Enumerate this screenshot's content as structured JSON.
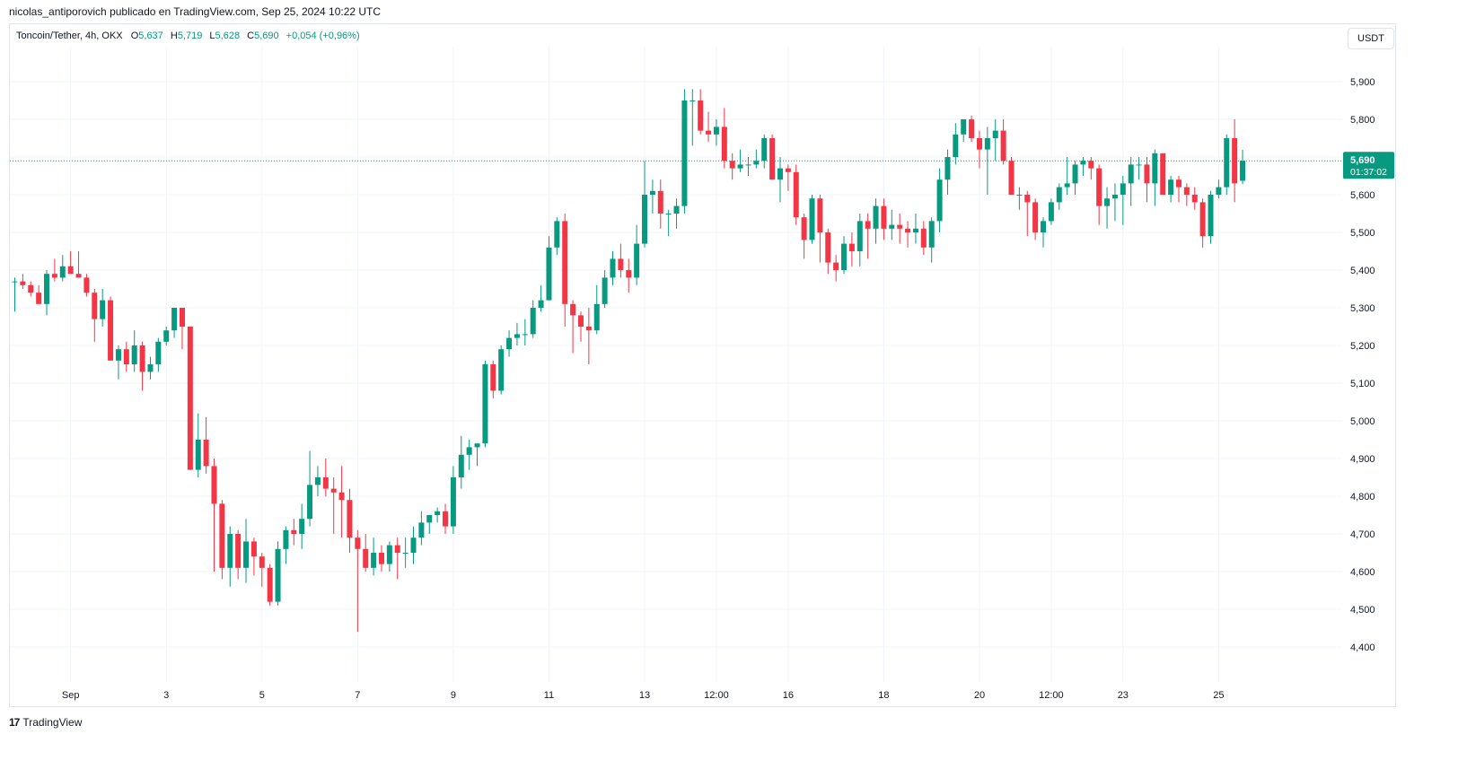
{
  "header": {
    "publisher_text": "nicolas_antiporovich publicado en TradingView.com, Sep 25, 2024 10:22 UTC"
  },
  "legend": {
    "symbol": "Toncoin/Tether, 4h, OKX",
    "open_label": "O",
    "open": "5,637",
    "high_label": "H",
    "high": "5,719",
    "low_label": "L",
    "low": "5,628",
    "close_label": "C",
    "close": "5,690",
    "change": "+0,054 (+0,96%)"
  },
  "currency_button": "USDT",
  "price_badge": {
    "price": "5,690",
    "countdown": "01:37:02"
  },
  "footer": {
    "logo": "17",
    "brand": "TradingView"
  },
  "colors": {
    "up": "#089981",
    "down": "#f23645",
    "grid": "#f0f3fa",
    "text": "#131722"
  },
  "chart_data": {
    "type": "candlestick",
    "title": "Toncoin/Tether, 4h, OKX",
    "ylim": [
      4.35,
      5.97
    ],
    "y_ticks": [
      "5,900",
      "5,800",
      "5,700",
      "5,600",
      "5,500",
      "5,400",
      "5,300",
      "5,200",
      "5,100",
      "5,000",
      "4,900",
      "4,800",
      "4,700",
      "4,600",
      "4,500",
      "4,400"
    ],
    "x_ticks": [
      {
        "label": "Sep",
        "i": 7
      },
      {
        "label": "3",
        "i": 19
      },
      {
        "label": "5",
        "i": 31
      },
      {
        "label": "7",
        "i": 43
      },
      {
        "label": "9",
        "i": 55
      },
      {
        "label": "11",
        "i": 67
      },
      {
        "label": "13",
        "i": 79
      },
      {
        "label": "12:00",
        "i": 88
      },
      {
        "label": "16",
        "i": 97
      },
      {
        "label": "18",
        "i": 109
      },
      {
        "label": "20",
        "i": 121
      },
      {
        "label": "12:00",
        "i": 130
      },
      {
        "label": "23",
        "i": 139
      },
      {
        "label": "25",
        "i": 151
      }
    ],
    "last_price": 5.69,
    "candles": [
      [
        5.37,
        5.38,
        5.29,
        5.37
      ],
      [
        5.37,
        5.39,
        5.35,
        5.36
      ],
      [
        5.36,
        5.37,
        5.33,
        5.34
      ],
      [
        5.34,
        5.36,
        5.31,
        5.31
      ],
      [
        5.31,
        5.4,
        5.28,
        5.39
      ],
      [
        5.39,
        5.43,
        5.37,
        5.38
      ],
      [
        5.38,
        5.44,
        5.37,
        5.41
      ],
      [
        5.41,
        5.45,
        5.39,
        5.39
      ],
      [
        5.39,
        5.45,
        5.38,
        5.38
      ],
      [
        5.38,
        5.39,
        5.33,
        5.34
      ],
      [
        5.34,
        5.35,
        5.21,
        5.27
      ],
      [
        5.27,
        5.35,
        5.25,
        5.32
      ],
      [
        5.32,
        5.33,
        5.16,
        5.16
      ],
      [
        5.16,
        5.2,
        5.11,
        5.19
      ],
      [
        5.19,
        5.21,
        5.13,
        5.15
      ],
      [
        5.15,
        5.24,
        5.13,
        5.2
      ],
      [
        5.2,
        5.21,
        5.08,
        5.13
      ],
      [
        5.13,
        5.17,
        5.11,
        5.15
      ],
      [
        5.15,
        5.22,
        5.13,
        5.21
      ],
      [
        5.21,
        5.25,
        5.2,
        5.24
      ],
      [
        5.24,
        5.3,
        5.22,
        5.3
      ],
      [
        5.3,
        5.3,
        5.19,
        5.25
      ],
      [
        5.25,
        5.25,
        4.87,
        4.87
      ],
      [
        4.87,
        5.02,
        4.85,
        4.95
      ],
      [
        4.95,
        5.01,
        4.86,
        4.88
      ],
      [
        4.88,
        4.9,
        4.6,
        4.78
      ],
      [
        4.78,
        4.79,
        4.58,
        4.61
      ],
      [
        4.61,
        4.72,
        4.56,
        4.7
      ],
      [
        4.7,
        4.71,
        4.58,
        4.61
      ],
      [
        4.61,
        4.74,
        4.57,
        4.68
      ],
      [
        4.68,
        4.69,
        4.59,
        4.64
      ],
      [
        4.64,
        4.65,
        4.56,
        4.61
      ],
      [
        4.61,
        4.62,
        4.51,
        4.52
      ],
      [
        4.52,
        4.68,
        4.51,
        4.66
      ],
      [
        4.66,
        4.72,
        4.62,
        4.71
      ],
      [
        4.71,
        4.74,
        4.67,
        4.7
      ],
      [
        4.7,
        4.78,
        4.66,
        4.74
      ],
      [
        4.74,
        4.92,
        4.72,
        4.83
      ],
      [
        4.83,
        4.88,
        4.8,
        4.85
      ],
      [
        4.85,
        4.9,
        4.8,
        4.82
      ],
      [
        4.82,
        4.85,
        4.7,
        4.81
      ],
      [
        4.81,
        4.88,
        4.69,
        4.79
      ],
      [
        4.79,
        4.82,
        4.65,
        4.69
      ],
      [
        4.69,
        4.71,
        4.44,
        4.66
      ],
      [
        4.66,
        4.7,
        4.6,
        4.61
      ],
      [
        4.61,
        4.69,
        4.59,
        4.65
      ],
      [
        4.65,
        4.67,
        4.6,
        4.62
      ],
      [
        4.62,
        4.68,
        4.6,
        4.67
      ],
      [
        4.67,
        4.69,
        4.58,
        4.65
      ],
      [
        4.65,
        4.69,
        4.61,
        4.65
      ],
      [
        4.65,
        4.72,
        4.62,
        4.69
      ],
      [
        4.69,
        4.76,
        4.67,
        4.73
      ],
      [
        4.73,
        4.75,
        4.7,
        4.75
      ],
      [
        4.75,
        4.77,
        4.73,
        4.76
      ],
      [
        4.76,
        4.78,
        4.7,
        4.72
      ],
      [
        4.72,
        4.88,
        4.7,
        4.85
      ],
      [
        4.85,
        4.96,
        4.82,
        4.91
      ],
      [
        4.91,
        4.95,
        4.87,
        4.93
      ],
      [
        4.93,
        4.94,
        4.88,
        4.94
      ],
      [
        4.94,
        5.16,
        4.93,
        5.15
      ],
      [
        5.15,
        5.16,
        5.06,
        5.08
      ],
      [
        5.08,
        5.2,
        5.07,
        5.19
      ],
      [
        5.19,
        5.24,
        5.17,
        5.22
      ],
      [
        5.22,
        5.26,
        5.2,
        5.23
      ],
      [
        5.23,
        5.27,
        5.2,
        5.23
      ],
      [
        5.23,
        5.32,
        5.22,
        5.3
      ],
      [
        5.3,
        5.36,
        5.29,
        5.32
      ],
      [
        5.32,
        5.49,
        5.32,
        5.46
      ],
      [
        5.46,
        5.54,
        5.44,
        5.53
      ],
      [
        5.53,
        5.55,
        5.25,
        5.31
      ],
      [
        5.31,
        5.32,
        5.18,
        5.28
      ],
      [
        5.28,
        5.29,
        5.21,
        5.25
      ],
      [
        5.25,
        5.3,
        5.15,
        5.24
      ],
      [
        5.24,
        5.36,
        5.23,
        5.31
      ],
      [
        5.31,
        5.4,
        5.3,
        5.38
      ],
      [
        5.38,
        5.45,
        5.36,
        5.43
      ],
      [
        5.43,
        5.47,
        5.38,
        5.4
      ],
      [
        5.4,
        5.43,
        5.34,
        5.38
      ],
      [
        5.38,
        5.52,
        5.36,
        5.47
      ],
      [
        5.47,
        5.69,
        5.46,
        5.6
      ],
      [
        5.6,
        5.64,
        5.55,
        5.61
      ],
      [
        5.61,
        5.64,
        5.51,
        5.55
      ],
      [
        5.55,
        5.56,
        5.49,
        5.55
      ],
      [
        5.55,
        5.59,
        5.51,
        5.57
      ],
      [
        5.57,
        5.88,
        5.55,
        5.85
      ],
      [
        5.85,
        5.88,
        5.73,
        5.85
      ],
      [
        5.85,
        5.88,
        5.76,
        5.77
      ],
      [
        5.77,
        5.82,
        5.74,
        5.76
      ],
      [
        5.76,
        5.8,
        5.73,
        5.78
      ],
      [
        5.78,
        5.83,
        5.67,
        5.69
      ],
      [
        5.69,
        5.71,
        5.64,
        5.67
      ],
      [
        5.67,
        5.72,
        5.66,
        5.68
      ],
      [
        5.68,
        5.7,
        5.65,
        5.68
      ],
      [
        5.68,
        5.72,
        5.67,
        5.69
      ],
      [
        5.69,
        5.76,
        5.67,
        5.75
      ],
      [
        5.75,
        5.76,
        5.64,
        5.64
      ],
      [
        5.64,
        5.7,
        5.58,
        5.67
      ],
      [
        5.67,
        5.68,
        5.61,
        5.66
      ],
      [
        5.66,
        5.68,
        5.52,
        5.54
      ],
      [
        5.54,
        5.55,
        5.43,
        5.48
      ],
      [
        5.48,
        5.6,
        5.47,
        5.59
      ],
      [
        5.59,
        5.6,
        5.42,
        5.5
      ],
      [
        5.5,
        5.51,
        5.39,
        5.42
      ],
      [
        5.42,
        5.44,
        5.37,
        5.4
      ],
      [
        5.4,
        5.49,
        5.39,
        5.47
      ],
      [
        5.47,
        5.5,
        5.41,
        5.45
      ],
      [
        5.45,
        5.55,
        5.41,
        5.53
      ],
      [
        5.53,
        5.55,
        5.43,
        5.51
      ],
      [
        5.51,
        5.59,
        5.47,
        5.57
      ],
      [
        5.57,
        5.59,
        5.48,
        5.51
      ],
      [
        5.51,
        5.56,
        5.48,
        5.52
      ],
      [
        5.52,
        5.55,
        5.47,
        5.51
      ],
      [
        5.51,
        5.53,
        5.46,
        5.5
      ],
      [
        5.5,
        5.55,
        5.47,
        5.51
      ],
      [
        5.51,
        5.53,
        5.44,
        5.46
      ],
      [
        5.46,
        5.54,
        5.42,
        5.53
      ],
      [
        5.53,
        5.67,
        5.5,
        5.64
      ],
      [
        5.64,
        5.72,
        5.6,
        5.7
      ],
      [
        5.7,
        5.79,
        5.68,
        5.76
      ],
      [
        5.76,
        5.8,
        5.74,
        5.8
      ],
      [
        5.8,
        5.81,
        5.74,
        5.75
      ],
      [
        5.75,
        5.77,
        5.67,
        5.72
      ],
      [
        5.72,
        5.78,
        5.6,
        5.75
      ],
      [
        5.75,
        5.8,
        5.69,
        5.77
      ],
      [
        5.77,
        5.8,
        5.68,
        5.69
      ],
      [
        5.69,
        5.7,
        5.6,
        5.6
      ],
      [
        5.6,
        5.62,
        5.56,
        5.6
      ],
      [
        5.6,
        5.61,
        5.49,
        5.58
      ],
      [
        5.58,
        5.59,
        5.48,
        5.5
      ],
      [
        5.5,
        5.54,
        5.46,
        5.53
      ],
      [
        5.53,
        5.59,
        5.52,
        5.58
      ],
      [
        5.58,
        5.63,
        5.56,
        5.62
      ],
      [
        5.62,
        5.7,
        5.6,
        5.63
      ],
      [
        5.63,
        5.69,
        5.6,
        5.68
      ],
      [
        5.68,
        5.7,
        5.65,
        5.69
      ],
      [
        5.69,
        5.7,
        5.64,
        5.67
      ],
      [
        5.67,
        5.68,
        5.52,
        5.57
      ],
      [
        5.57,
        5.62,
        5.51,
        5.59
      ],
      [
        5.59,
        5.63,
        5.53,
        5.6
      ],
      [
        5.6,
        5.65,
        5.52,
        5.63
      ],
      [
        5.63,
        5.7,
        5.57,
        5.68
      ],
      [
        5.68,
        5.7,
        5.64,
        5.68
      ],
      [
        5.68,
        5.7,
        5.58,
        5.63
      ],
      [
        5.63,
        5.72,
        5.57,
        5.71
      ],
      [
        5.71,
        5.71,
        5.61,
        5.6
      ],
      [
        5.6,
        5.65,
        5.58,
        5.64
      ],
      [
        5.64,
        5.65,
        5.58,
        5.62
      ],
      [
        5.62,
        5.63,
        5.57,
        5.6
      ],
      [
        5.6,
        5.62,
        5.56,
        5.58
      ],
      [
        5.58,
        5.59,
        5.46,
        5.49
      ],
      [
        5.49,
        5.61,
        5.47,
        5.6
      ],
      [
        5.6,
        5.64,
        5.59,
        5.62
      ],
      [
        5.62,
        5.76,
        5.6,
        5.75
      ],
      [
        5.75,
        5.8,
        5.58,
        5.63
      ],
      [
        5.637,
        5.719,
        5.628,
        5.69
      ]
    ]
  }
}
